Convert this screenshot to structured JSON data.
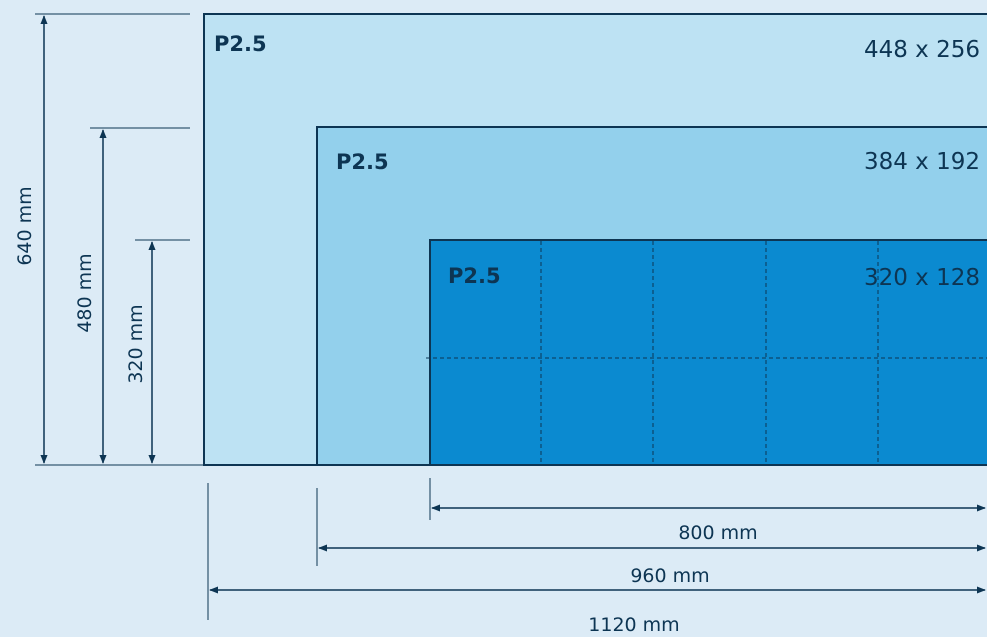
{
  "colors": {
    "background": "#dcebf6",
    "panel_large": "#bde2f3",
    "panel_medium": "#93d0ec",
    "panel_small": "#0b8ad0",
    "line": "#0d3553"
  },
  "panels": [
    {
      "pitch": "P2.5",
      "resolution": "448 x 256"
    },
    {
      "pitch": "P2.5",
      "resolution": "384 x 192"
    },
    {
      "pitch": "P2.5",
      "resolution": "320 x 128"
    }
  ],
  "heights": [
    "640 mm",
    "480 mm",
    "320 mm"
  ],
  "widths": [
    "800 mm",
    "960 mm",
    "1120 mm"
  ]
}
